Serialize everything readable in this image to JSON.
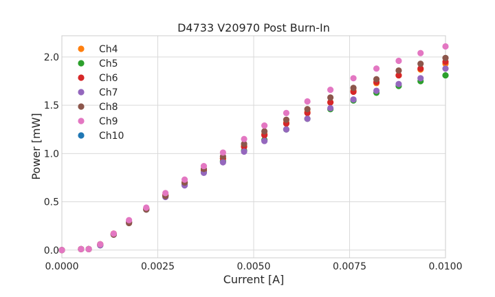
{
  "chart_data": {
    "type": "scatter",
    "title": "D4733 V20970 Post Burn-In",
    "xlabel": "Current [A]",
    "ylabel": "Power [mW]",
    "xlim": [
      0.0,
      0.01
    ],
    "ylim": [
      -0.08,
      2.22
    ],
    "xticks": [
      0.0,
      0.0025,
      0.005,
      0.0075,
      0.01
    ],
    "xtick_labels": [
      "0.0000",
      "0.0025",
      "0.0050",
      "0.0075",
      "0.0100"
    ],
    "yticks": [
      0.0,
      0.5,
      1.0,
      1.5,
      2.0
    ],
    "ytick_labels": [
      "0.0",
      "0.5",
      "1.0",
      "1.5",
      "2.0"
    ],
    "grid": true,
    "legend_position": "top-left",
    "x": [
      0.0,
      0.0005,
      0.0007,
      0.001,
      0.00135,
      0.00175,
      0.0022,
      0.0027,
      0.0032,
      0.0037,
      0.0042,
      0.00475,
      0.00528,
      0.00585,
      0.0064,
      0.007,
      0.0076,
      0.0082,
      0.00878,
      0.00935,
      0.01
    ],
    "series": [
      {
        "name": "Ch4",
        "color": "#ff7f0e",
        "values": [
          0.0,
          0.01,
          0.01,
          0.06,
          0.17,
          0.29,
          0.43,
          0.57,
          0.7,
          0.83,
          0.95,
          1.08,
          1.2,
          1.32,
          1.43,
          1.53,
          1.65,
          1.73,
          1.81,
          1.87,
          1.93
        ]
      },
      {
        "name": "Ch5",
        "color": "#2ca02c",
        "values": [
          0.0,
          0.01,
          0.01,
          0.05,
          0.16,
          0.29,
          0.42,
          0.56,
          0.68,
          0.81,
          0.92,
          1.03,
          1.14,
          1.25,
          1.36,
          1.46,
          1.55,
          1.63,
          1.7,
          1.75,
          1.81
        ]
      },
      {
        "name": "Ch6",
        "color": "#d62728",
        "values": [
          0.0,
          0.01,
          0.01,
          0.06,
          0.17,
          0.29,
          0.43,
          0.57,
          0.7,
          0.83,
          0.95,
          1.07,
          1.19,
          1.31,
          1.42,
          1.53,
          1.64,
          1.74,
          1.81,
          1.88,
          1.95
        ]
      },
      {
        "name": "Ch7",
        "color": "#9467bd",
        "values": [
          0.0,
          0.01,
          0.01,
          0.05,
          0.16,
          0.29,
          0.42,
          0.55,
          0.67,
          0.8,
          0.91,
          1.02,
          1.13,
          1.25,
          1.36,
          1.47,
          1.56,
          1.65,
          1.72,
          1.78,
          1.88
        ]
      },
      {
        "name": "Ch8",
        "color": "#8c564b",
        "values": [
          0.0,
          0.01,
          0.01,
          0.06,
          0.16,
          0.28,
          0.42,
          0.56,
          0.7,
          0.84,
          0.97,
          1.1,
          1.23,
          1.35,
          1.46,
          1.58,
          1.68,
          1.77,
          1.86,
          1.93,
          1.99
        ]
      },
      {
        "name": "Ch9",
        "color": "#e377c2",
        "values": [
          0.0,
          0.01,
          0.01,
          0.06,
          0.17,
          0.31,
          0.44,
          0.59,
          0.73,
          0.87,
          1.01,
          1.15,
          1.29,
          1.42,
          1.54,
          1.66,
          1.78,
          1.88,
          1.96,
          2.04,
          2.11
        ]
      },
      {
        "name": "Ch10",
        "color": "#1f77b4",
        "values": []
      }
    ]
  }
}
